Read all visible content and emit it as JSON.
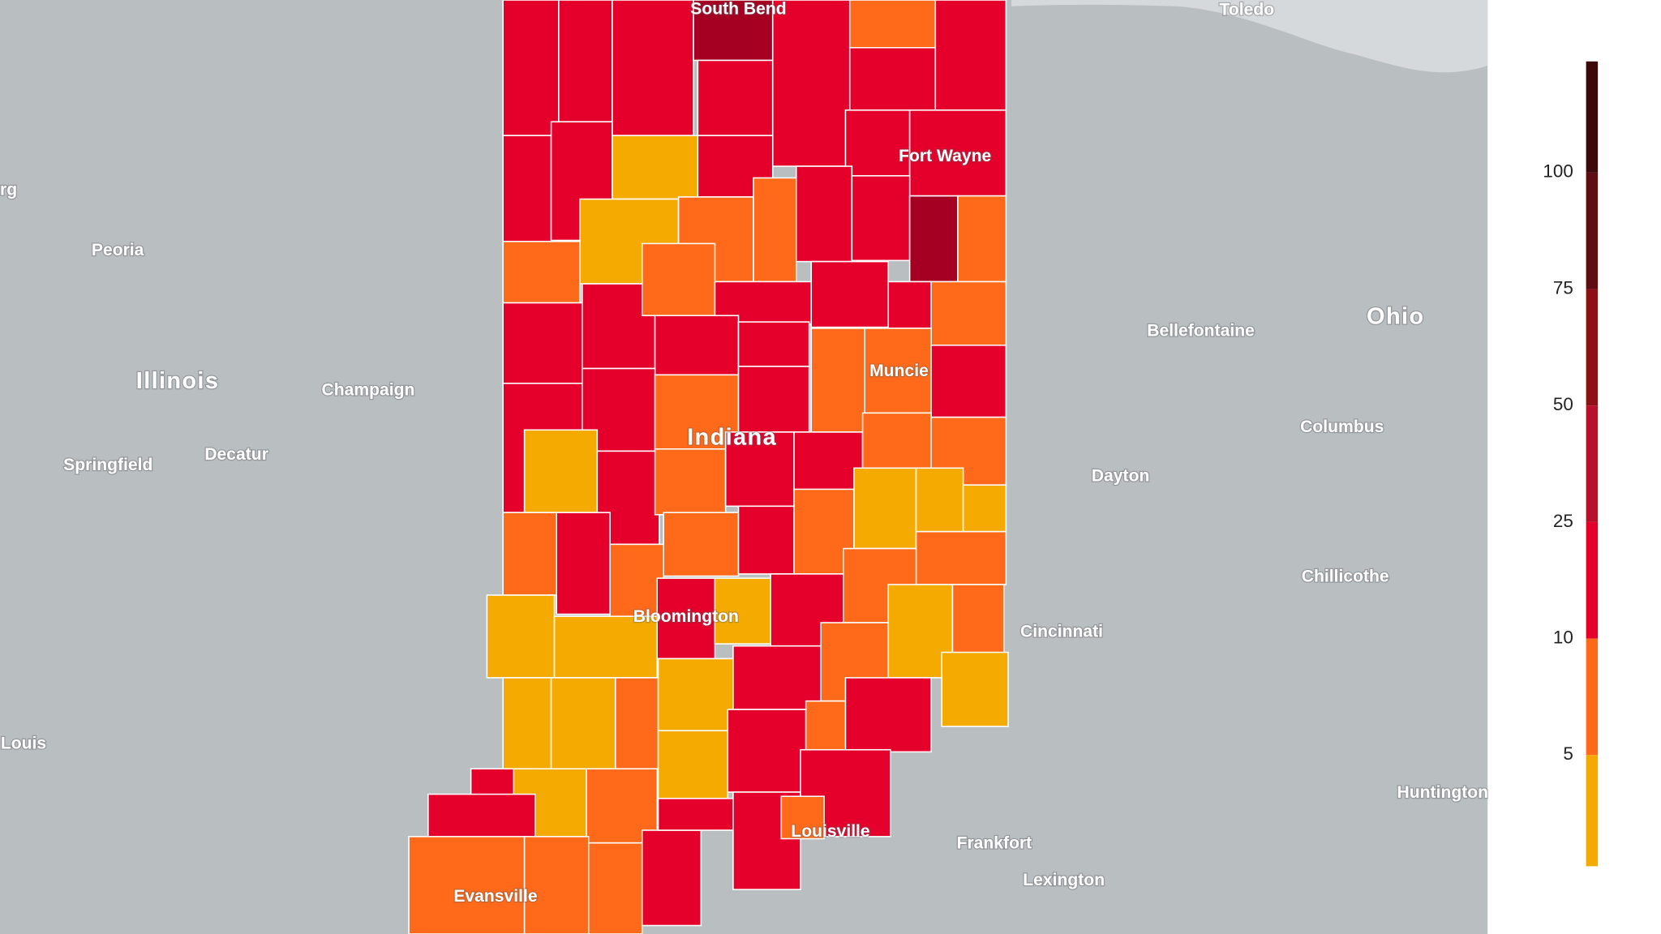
{
  "places": [
    "South Bend",
    "Toledo",
    "rg",
    "Peoria",
    "Fort Wayne",
    "Bellefontaine",
    "Ohio",
    "Illinois",
    "Champaign",
    "Muncie",
    "Columbus",
    "Indiana",
    "Decatur",
    "Springfield",
    "Dayton",
    "Chillicothe",
    "Bloomington",
    "Cincinnati",
    "Louis",
    "Huntington",
    "Louisville",
    "Frankfort",
    "Lexington",
    "Evansville"
  ],
  "legend": {
    "ticks": [
      100,
      75,
      50,
      25,
      10,
      5
    ],
    "colors": [
      "#3d0a0c",
      "#5e0d12",
      "#8c1016",
      "#b80f2b",
      "#e4002b",
      "#ff6a1a",
      "#f4aa00"
    ]
  }
}
